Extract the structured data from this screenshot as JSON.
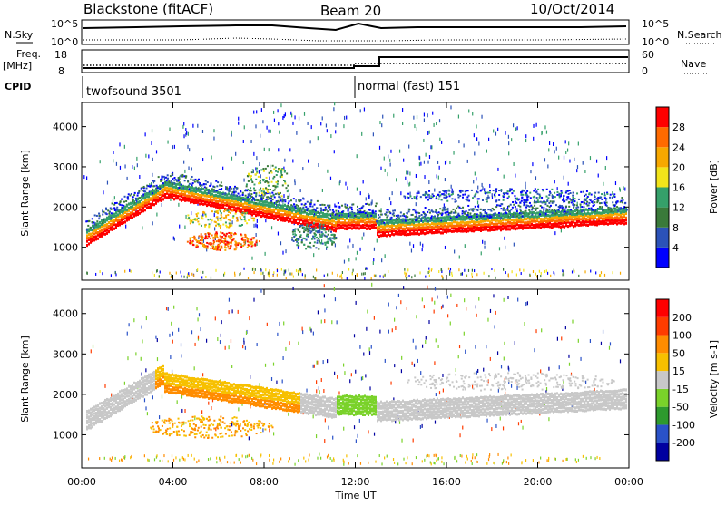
{
  "header": {
    "station": "Blackstone (fitACF)",
    "beam": "Beam 20",
    "date": "10/Oct/2014"
  },
  "colors": {
    "power_scale": [
      "#0000ff",
      "#2b52b8",
      "#3a7a3a",
      "#35a06a",
      "#f2e41a",
      "#f7a800",
      "#ff6a00",
      "#ff0000"
    ],
    "velocity_scale": [
      "#0000a0",
      "#2a52c8",
      "#2e9a2e",
      "#7ad22a",
      "#c8c8c8",
      "#f7c000",
      "#ff8c00",
      "#ff3c00",
      "#ff0000"
    ]
  },
  "panels": {
    "nsky_label": "N.Sky",
    "nsky_ticks": [
      "10^5",
      "10^0"
    ],
    "nsearch_label": "N.Search",
    "nsearch_ticks": [
      "10^5",
      "10^0"
    ],
    "freq_label_1": "Freq.",
    "freq_label_2": "[MHz]",
    "freq_ticks": [
      "18",
      "8"
    ],
    "nave_label": "Nave",
    "nave_ticks": [
      "60",
      "0"
    ],
    "cpid_label": "CPID",
    "cpid_1": "twofsound 3501",
    "cpid_2": "normal (fast) 151"
  },
  "chart_data": [
    {
      "type": "heatmap",
      "ylabel": "Slant Range [km]",
      "ylim": [
        180,
        4600
      ],
      "y_ticks": [
        1000,
        2000,
        3000,
        4000
      ],
      "x_ticks": [
        "00:00",
        "04:00",
        "08:00",
        "12:00",
        "16:00",
        "20:00",
        "00:00"
      ],
      "colorbar": {
        "label": "Power [dB]",
        "ticks": [
          4,
          8,
          12,
          16,
          20,
          24,
          28
        ]
      }
    },
    {
      "type": "heatmap",
      "ylabel": "Slant Range [km]",
      "xlabel": "Time UT",
      "ylim": [
        180,
        4600
      ],
      "y_ticks": [
        1000,
        2000,
        3000,
        4000
      ],
      "x_ticks": [
        "00:00",
        "04:00",
        "08:00",
        "12:00",
        "16:00",
        "20:00",
        "00:00"
      ],
      "colorbar": {
        "label": "Velocity [m s-1]",
        "ticks": [
          200,
          100,
          50,
          15,
          -15,
          -50,
          -100,
          -200
        ]
      }
    }
  ]
}
